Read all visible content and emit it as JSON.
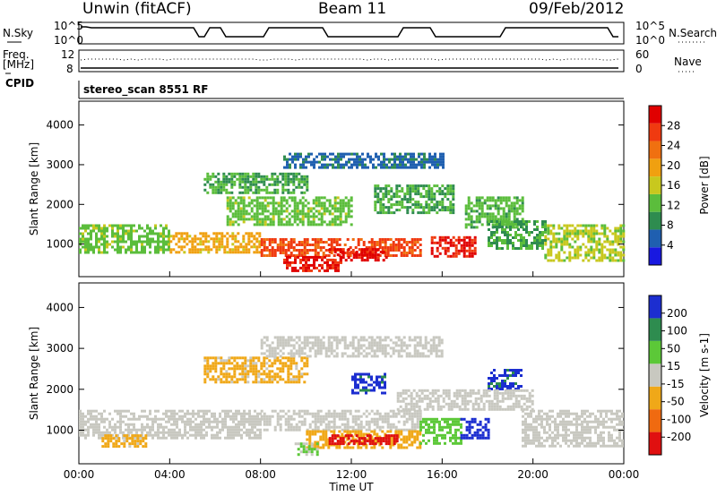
{
  "header": {
    "title": "Unwin (fitACF)",
    "beam": "Beam 11",
    "date": "09/Feb/2012"
  },
  "panels": {
    "nsky_label": "N.Sky",
    "nsky_ticks": [
      "10^5",
      "10^0"
    ],
    "nsearch_label": "N.Search",
    "nsearch_ticks": [
      "10^5",
      "10^0"
    ],
    "freq_label_1": "Freq.",
    "freq_label_2": "[MHz]",
    "freq_ticks": [
      "12",
      "8"
    ],
    "nave_label": "Nave",
    "nave_ticks": [
      "60",
      "0"
    ],
    "cpid_label": "CPID",
    "cpid_value": "stereo_scan 8551 RF"
  },
  "colors": {
    "power": [
      "#1818e0",
      "#1f5fb0",
      "#2e8c4f",
      "#5bbd3c",
      "#c8c81e",
      "#f0a010",
      "#f07010",
      "#f03a10",
      "#e00000"
    ],
    "velocity": [
      "#e01010",
      "#f06a10",
      "#f0a818",
      "#c8c8c0",
      "#5cc838",
      "#2e8c4f",
      "#1c2ed0"
    ]
  },
  "chart_data": [
    {
      "type": "heatmap",
      "title": "Power",
      "xlabel": "Time UT",
      "ylabel": "Slant Range [km]",
      "x_ticks": [
        "00:00",
        "04:00",
        "08:00",
        "12:00",
        "16:00",
        "20:00",
        "00:00"
      ],
      "y_ticks": [
        "1000",
        "2000",
        "3000",
        "4000"
      ],
      "ylim": [
        180,
        4600
      ],
      "xlim_hours": [
        0,
        24
      ],
      "colorbar_label": "Power [dB]",
      "colorbar_ticks": [
        "4",
        "8",
        "12",
        "16",
        "20",
        "24",
        "28"
      ],
      "colorbar_range": [
        0,
        30
      ],
      "regions": [
        {
          "t0": 0.0,
          "t1": 4.0,
          "r0": 800,
          "r1": 1500,
          "value": 12
        },
        {
          "t0": 4.0,
          "t1": 8.0,
          "r0": 800,
          "r1": 1300,
          "value": 18
        },
        {
          "t0": 8.0,
          "t1": 15.0,
          "r0": 700,
          "r1": 1150,
          "value": 24
        },
        {
          "t0": 9.0,
          "t1": 11.5,
          "r0": 300,
          "r1": 700,
          "value": 27
        },
        {
          "t0": 11.0,
          "t1": 13.5,
          "r0": 600,
          "r1": 900,
          "value": 28
        },
        {
          "t0": 15.5,
          "t1": 17.5,
          "r0": 700,
          "r1": 1200,
          "value": 27
        },
        {
          "t0": 6.5,
          "t1": 12.0,
          "r0": 1500,
          "r1": 2200,
          "value": 12
        },
        {
          "t0": 5.5,
          "t1": 10.0,
          "r0": 2300,
          "r1": 2800,
          "value": 10
        },
        {
          "t0": 9.0,
          "t1": 16.0,
          "r0": 2900,
          "r1": 3300,
          "value": 6
        },
        {
          "t0": 13.0,
          "t1": 16.5,
          "r0": 1800,
          "r1": 2500,
          "value": 10
        },
        {
          "t0": 17.0,
          "t1": 19.5,
          "r0": 1400,
          "r1": 2200,
          "value": 11
        },
        {
          "t0": 20.5,
          "t1": 24.0,
          "r0": 600,
          "r1": 1500,
          "value": 14
        },
        {
          "t0": 18.0,
          "t1": 20.5,
          "r0": 900,
          "r1": 1600,
          "value": 10
        }
      ]
    },
    {
      "type": "heatmap",
      "title": "Velocity",
      "xlabel": "Time UT",
      "ylabel": "Slant Range [km]",
      "x_ticks": [
        "00:00",
        "04:00",
        "08:00",
        "12:00",
        "16:00",
        "20:00",
        "00:00"
      ],
      "y_ticks": [
        "1000",
        "2000",
        "3000",
        "4000"
      ],
      "ylim": [
        180,
        4600
      ],
      "xlim_hours": [
        0,
        24
      ],
      "colorbar_label": "Velocity [m s-1]",
      "colorbar_ticks": [
        "-200",
        "-100",
        "-50",
        "-15",
        "15",
        "50",
        "100",
        "200"
      ],
      "colorbar_range": [
        -250,
        250
      ],
      "regions": [
        {
          "t0": 0.0,
          "t1": 8.0,
          "r0": 800,
          "r1": 1500,
          "value": 0
        },
        {
          "t0": 8.0,
          "t1": 15.0,
          "r0": 1000,
          "r1": 1500,
          "value": 0
        },
        {
          "t0": 10.0,
          "t1": 15.0,
          "r0": 600,
          "r1": 1000,
          "value": -70
        },
        {
          "t0": 11.0,
          "t1": 14.0,
          "r0": 650,
          "r1": 900,
          "value": -220
        },
        {
          "t0": 15.0,
          "t1": 16.8,
          "r0": 700,
          "r1": 1300,
          "value": 70
        },
        {
          "t0": 16.8,
          "t1": 18.0,
          "r0": 800,
          "r1": 1300,
          "value": 220
        },
        {
          "t0": 5.5,
          "t1": 10.0,
          "r0": 2200,
          "r1": 2800,
          "value": -60
        },
        {
          "t0": 8.0,
          "t1": 16.0,
          "r0": 2800,
          "r1": 3300,
          "value": 0
        },
        {
          "t0": 12.0,
          "t1": 13.5,
          "r0": 1900,
          "r1": 2400,
          "value": 200
        },
        {
          "t0": 18.0,
          "t1": 19.5,
          "r0": 2000,
          "r1": 2500,
          "value": 200
        },
        {
          "t0": 14.0,
          "t1": 20.0,
          "r0": 1500,
          "r1": 2000,
          "value": 0
        },
        {
          "t0": 19.5,
          "t1": 24.0,
          "r0": 600,
          "r1": 1500,
          "value": 0
        },
        {
          "t0": 9.5,
          "t1": 10.5,
          "r0": 400,
          "r1": 700,
          "value": 40
        },
        {
          "t0": 1.0,
          "t1": 3.0,
          "r0": 600,
          "r1": 900,
          "value": -60
        }
      ]
    }
  ]
}
